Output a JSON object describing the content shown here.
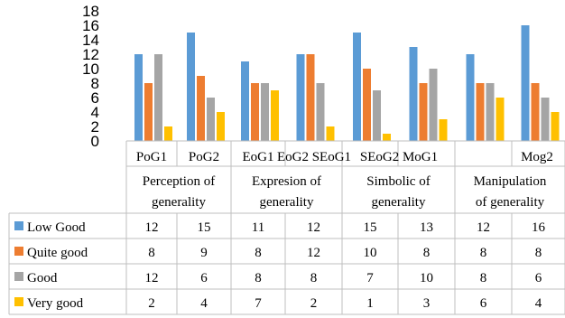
{
  "chart_data": {
    "type": "bar",
    "title": "",
    "xlabel": "",
    "ylabel": "",
    "ylim": [
      0,
      18
    ],
    "yticks": [
      0,
      2,
      4,
      6,
      8,
      10,
      12,
      14,
      16,
      18
    ],
    "grid": false,
    "legend": "data-table-left",
    "categories": [
      "PoG1",
      "PoG2",
      "EoG1",
      "EoG2",
      "SEoG1",
      "SEoG2",
      "MoG1",
      "Mog2"
    ],
    "category_axis_text": [
      "PoG1",
      "PoG2",
      "EoG1",
      "EoG2 SEoG1",
      "SEoG2 MoG1",
      "Mog2"
    ],
    "groups": [
      {
        "line1": "Perception of",
        "line2": "generality"
      },
      {
        "line1": "Expresion of",
        "line2": "generality"
      },
      {
        "line1": "Simbolic of",
        "line2": "generality"
      },
      {
        "line1": "Manipulation",
        "line2": "of generality"
      }
    ],
    "series": [
      {
        "name": "Low Good",
        "color": "#5b9bd5",
        "values": [
          12,
          15,
          11,
          12,
          15,
          13,
          12,
          16
        ]
      },
      {
        "name": "Quite good",
        "color": "#ed7d31",
        "values": [
          8,
          9,
          8,
          12,
          10,
          8,
          8,
          8
        ]
      },
      {
        "name": "Good",
        "color": "#a5a5a5",
        "values": [
          12,
          6,
          8,
          8,
          7,
          10,
          8,
          6
        ]
      },
      {
        "name": "Very good",
        "color": "#ffc000",
        "values": [
          2,
          4,
          7,
          2,
          1,
          3,
          6,
          4
        ]
      }
    ]
  }
}
